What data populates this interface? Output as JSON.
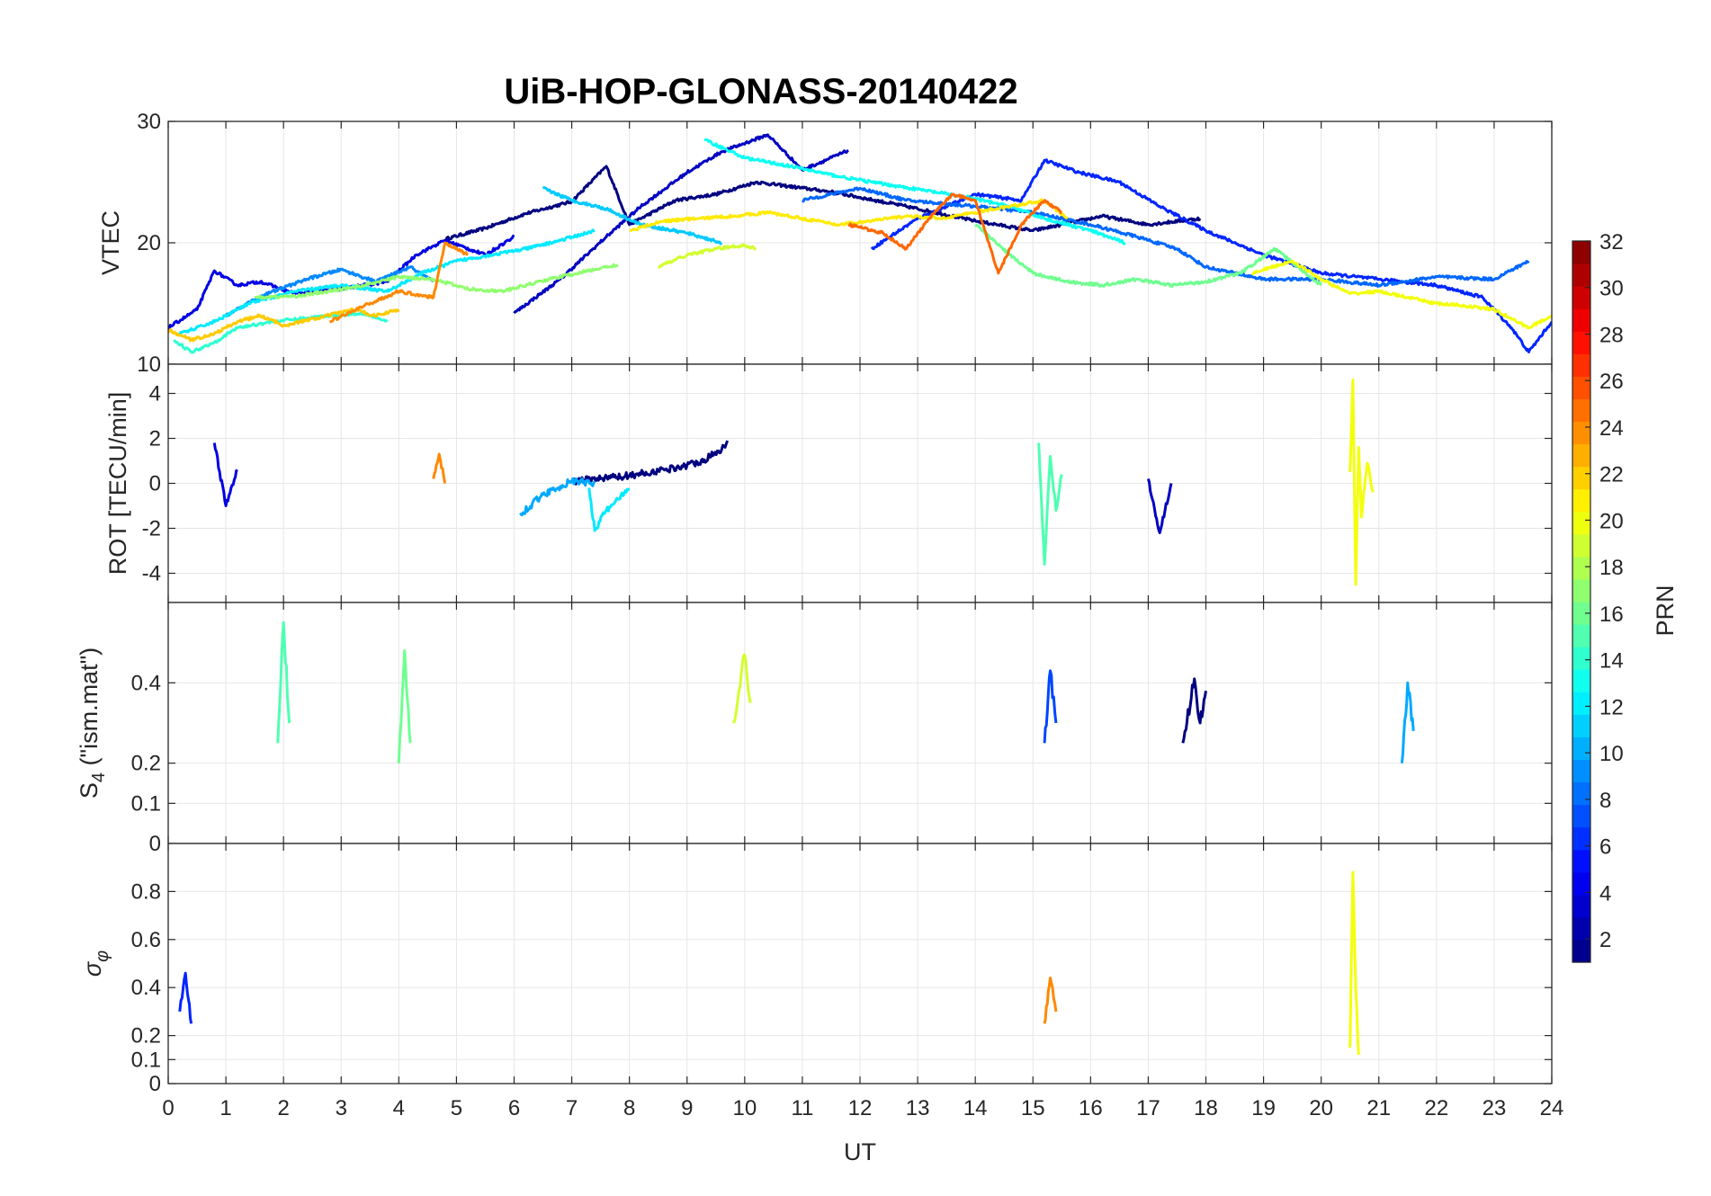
{
  "chart_data": {
    "type": "line",
    "title": "UiB-HOP-GLONASS-20140422",
    "xlabel": "UT",
    "xlim": [
      0,
      24
    ],
    "xticks": [
      "0",
      "1",
      "2",
      "3",
      "4",
      "5",
      "6",
      "7",
      "8",
      "9",
      "10",
      "11",
      "12",
      "13",
      "14",
      "15",
      "16",
      "17",
      "18",
      "19",
      "20",
      "21",
      "22",
      "23",
      "24"
    ],
    "grid": true,
    "colorbar": {
      "label": "PRN",
      "colormap": "jet",
      "range": [
        1,
        32
      ],
      "ticks": [
        "2",
        "4",
        "6",
        "8",
        "10",
        "12",
        "14",
        "16",
        "18",
        "20",
        "22",
        "24",
        "26",
        "28",
        "30",
        "32"
      ]
    },
    "panels": [
      {
        "id": "vtec",
        "ylabel": "VTEC",
        "ylim": [
          10,
          30
        ],
        "yticks": [
          "10",
          "20",
          "30"
        ],
        "series": [
          {
            "prn": 1,
            "x": [
              4.8,
              5.5,
              6.2,
              7.0,
              7.6,
              8.0,
              8.8,
              9.5,
              10.2,
              11.5,
              12.8,
              14.0,
              15.0,
              16.2,
              17.0,
              17.9
            ],
            "y": [
              20.3,
              21.2,
              22.4,
              23.4,
              26.3,
              21.5,
              23.5,
              24.0,
              25.0,
              24.2,
              23.0,
              21.8,
              21.0,
              22.2,
              21.5,
              22.0
            ]
          },
          {
            "prn": 3,
            "x": [
              6.0,
              6.8,
              7.6,
              8.2,
              9.0,
              9.6,
              10.4,
              11.0,
              11.8
            ],
            "y": [
              14.2,
              17.0,
              20.5,
              23.0,
              25.8,
              27.5,
              28.9,
              26.0,
              27.6
            ]
          },
          {
            "prn": 4,
            "x": [
              0.0,
              0.5,
              0.8,
              1.2,
              1.6,
              2.2,
              3.0,
              3.8,
              4.3,
              4.8,
              5.5,
              6.0
            ],
            "y": [
              13.0,
              14.5,
              17.7,
              16.5,
              16.8,
              15.8,
              16.2,
              16.8,
              19.0,
              20.2,
              19.0,
              20.5
            ]
          },
          {
            "prn": 6,
            "x": [
              12.2,
              13.0,
              14.0,
              14.8,
              15.2,
              15.8,
              16.5,
              17.2,
              18.0,
              19.0,
              20.0,
              21.0,
              22.0,
              22.8,
              23.3,
              23.6,
              24.0
            ],
            "y": [
              19.5,
              22.0,
              24.0,
              23.5,
              26.8,
              25.8,
              25.0,
              23.0,
              21.0,
              19.0,
              17.5,
              17.0,
              16.5,
              15.5,
              13.0,
              11.0,
              13.5
            ]
          },
          {
            "prn": 8,
            "x": [
              11.0,
              12.0,
              12.8,
              14.0,
              15.0,
              16.0,
              16.8,
              17.5,
              18.0,
              19.0,
              20.0,
              21.0,
              22.0,
              23.0,
              23.6
            ],
            "y": [
              23.5,
              24.5,
              23.5,
              23.0,
              22.5,
              21.5,
              20.5,
              19.5,
              18.0,
              17.0,
              17.0,
              16.5,
              17.2,
              17.0,
              18.5
            ]
          },
          {
            "prn": 9,
            "x": [
              1.0,
              1.6,
              2.4,
              3.0,
              3.6,
              4.2,
              4.6
            ],
            "y": [
              14.0,
              15.6,
              17.0,
              17.8,
              16.8,
              18.0,
              16.8
            ]
          },
          {
            "prn": 11,
            "x": [
              6.5,
              7.0,
              7.6,
              8.2,
              9.0,
              9.6
            ],
            "y": [
              24.5,
              23.5,
              22.8,
              21.5,
              20.8,
              20.0
            ]
          },
          {
            "prn": 12,
            "x": [
              0.2,
              0.8,
              1.4,
              2.2,
              3.0,
              3.8,
              4.4,
              5.0,
              5.6,
              6.2,
              6.8,
              7.4
            ],
            "y": [
              12.5,
              13.5,
              15.0,
              16.0,
              16.5,
              16.0,
              17.5,
              18.5,
              19.0,
              19.5,
              20.2,
              21.0
            ]
          },
          {
            "prn": 13,
            "x": [
              9.3,
              10.0,
              10.8,
              11.6,
              12.2,
              13.0,
              13.8,
              14.6,
              15.2,
              16.0,
              16.6
            ],
            "y": [
              28.5,
              27.0,
              26.3,
              25.5,
              25.0,
              24.4,
              23.8,
              23.0,
              22.0,
              21.0,
              20.0
            ]
          },
          {
            "prn": 14,
            "x": [
              0.1,
              0.4,
              0.8,
              1.2,
              1.8,
              2.4,
              2.8,
              3.4,
              3.8
            ],
            "y": [
              12.0,
              11.0,
              11.8,
              13.0,
              13.5,
              13.8,
              14.0,
              14.2,
              13.5
            ]
          },
          {
            "prn": 16,
            "x": [
              14.0,
              14.6,
              15.0,
              15.6,
              16.2,
              16.8,
              17.4,
              18.0,
              18.6,
              19.2,
              20.0
            ],
            "y": [
              21.5,
              19.0,
              17.5,
              16.8,
              16.5,
              17.0,
              16.5,
              16.8,
              17.5,
              19.5,
              16.5
            ]
          },
          {
            "prn": 17,
            "x": [
              1.5,
              2.2,
              2.8,
              3.4,
              4.0,
              4.6,
              5.2,
              5.8,
              6.6,
              7.4,
              7.8
            ],
            "y": [
              15.5,
              15.6,
              16.0,
              16.5,
              17.2,
              17.0,
              16.2,
              16.0,
              17.0,
              17.8,
              18.2
            ]
          },
          {
            "prn": 19,
            "x": [
              8.5,
              9.0,
              9.5,
              10.0,
              10.2
            ],
            "y": [
              18.0,
              19.0,
              19.5,
              19.8,
              19.5
            ]
          },
          {
            "prn": 20,
            "x": [
              18.8,
              19.5,
              20.0,
              20.5,
              21.0,
              21.5,
              22.0,
              22.5,
              23.0,
              23.6,
              24.0
            ],
            "y": [
              17.5,
              18.5,
              17.0,
              15.8,
              16.0,
              15.5,
              15.0,
              14.8,
              14.5,
              13.0,
              14.0
            ]
          },
          {
            "prn": 21,
            "x": [
              8.0,
              8.6,
              9.2,
              9.8,
              10.4,
              11.0,
              11.6,
              12.2,
              12.8,
              13.4,
              14.0,
              14.6,
              15.2,
              15.6
            ],
            "y": [
              21.0,
              21.8,
              22.0,
              22.2,
              22.5,
              22.0,
              21.5,
              21.8,
              22.2,
              22.0,
              22.5,
              23.0,
              23.5,
              22.0
            ]
          },
          {
            "prn": 22,
            "x": [
              0.0,
              0.4,
              0.8,
              1.2,
              1.6,
              2.0,
              2.6,
              3.2,
              3.6,
              4.0
            ],
            "y": [
              12.8,
              12.0,
              12.5,
              13.5,
              14.0,
              13.2,
              13.8,
              14.5,
              14.0,
              14.5
            ]
          },
          {
            "prn": 24,
            "x": [
              2.8,
              3.4,
              4.0,
              4.6,
              4.8,
              5.2
            ],
            "y": [
              13.5,
              14.8,
              16.0,
              15.5,
              20.0,
              19.0
            ]
          },
          {
            "prn": 25,
            "x": [
              11.8,
              12.4,
              12.8,
              13.2,
              13.6,
              14.0,
              14.4,
              14.8,
              15.2,
              15.5
            ],
            "y": [
              21.5,
              20.8,
              19.5,
              22.0,
              24.0,
              23.5,
              17.5,
              21.5,
              23.5,
              22.5
            ]
          }
        ]
      },
      {
        "id": "rot",
        "ylabel": "ROT [TECU/min]",
        "ylim": [
          -5.3,
          5.3
        ],
        "yticks": [
          "-4",
          "-2",
          "0",
          "2",
          "4"
        ],
        "series": [
          {
            "prn": 1,
            "x": [
              7.0,
              7.5,
              8.0,
              8.5,
              9.0,
              9.3,
              9.6,
              9.7
            ],
            "y": [
              0.1,
              0.2,
              0.35,
              0.55,
              0.8,
              1.05,
              1.5,
              1.9
            ]
          },
          {
            "prn": 3,
            "x": [
              17.0,
              17.2,
              17.4
            ],
            "y": [
              0.2,
              -2.2,
              0.0
            ]
          },
          {
            "prn": 4,
            "x": [
              0.8,
              1.0,
              1.2
            ],
            "y": [
              1.8,
              -1.0,
              0.6
            ]
          },
          {
            "prn": 10,
            "x": [
              6.1,
              6.5,
              7.0,
              7.4
            ],
            "y": [
              -1.4,
              -0.5,
              0.1,
              0.0
            ]
          },
          {
            "prn": 12,
            "x": [
              7.3,
              7.4,
              7.6,
              7.8,
              8.0
            ],
            "y": [
              -0.2,
              -2.1,
              -1.2,
              -0.7,
              -0.3
            ]
          },
          {
            "prn": 15,
            "x": [
              15.1,
              15.2,
              15.3,
              15.4,
              15.5
            ],
            "y": [
              1.8,
              -3.6,
              1.2,
              -1.2,
              0.4
            ]
          },
          {
            "prn": 20,
            "x": [
              20.5,
              20.55,
              20.6,
              20.65,
              20.7,
              20.8,
              20.9
            ],
            "y": [
              0.5,
              4.6,
              -4.5,
              1.6,
              -1.5,
              0.9,
              -0.4
            ]
          },
          {
            "prn": 24,
            "x": [
              4.6,
              4.7,
              4.8
            ],
            "y": [
              0.2,
              1.3,
              0.0
            ]
          }
        ]
      },
      {
        "id": "s4",
        "ylabel": "S4 (\"ism.mat\")",
        "ylim": [
          0,
          0.6
        ],
        "yticks": [
          "0",
          "0.1",
          "0.2",
          "0.4"
        ],
        "series": [
          {
            "prn": 1,
            "x": [
              17.6,
              17.8,
              17.9,
              18.0
            ],
            "y": [
              0.25,
              0.41,
              0.3,
              0.38
            ]
          },
          {
            "prn": 7,
            "x": [
              15.2,
              15.3,
              15.4
            ],
            "y": [
              0.25,
              0.43,
              0.3
            ]
          },
          {
            "prn": 10,
            "x": [
              21.4,
              21.5,
              21.6
            ],
            "y": [
              0.2,
              0.4,
              0.28
            ]
          },
          {
            "prn": 15,
            "x": [
              1.9,
              2.0,
              2.1
            ],
            "y": [
              0.25,
              0.55,
              0.3
            ]
          },
          {
            "prn": 16,
            "x": [
              4.0,
              4.1,
              4.2
            ],
            "y": [
              0.2,
              0.48,
              0.25
            ]
          },
          {
            "prn": 19,
            "x": [
              9.8,
              9.9,
              10.0,
              10.1
            ],
            "y": [
              0.3,
              0.38,
              0.47,
              0.35
            ]
          }
        ]
      },
      {
        "id": "sigma_phi",
        "ylabel": "σφ",
        "ylim": [
          0,
          1.0
        ],
        "yticks": [
          "0",
          "0.1",
          "0.2",
          "0.4",
          "0.6",
          "0.8"
        ],
        "series": [
          {
            "prn": 20,
            "x": [
              20.5,
              20.55,
              20.6,
              20.65
            ],
            "y": [
              0.15,
              0.88,
              0.4,
              0.12
            ]
          },
          {
            "prn": 24,
            "x": [
              15.2,
              15.3,
              15.4
            ],
            "y": [
              0.25,
              0.44,
              0.3
            ]
          },
          {
            "prn": 6,
            "x": [
              0.2,
              0.3,
              0.4
            ],
            "y": [
              0.3,
              0.46,
              0.25
            ]
          }
        ]
      }
    ]
  }
}
